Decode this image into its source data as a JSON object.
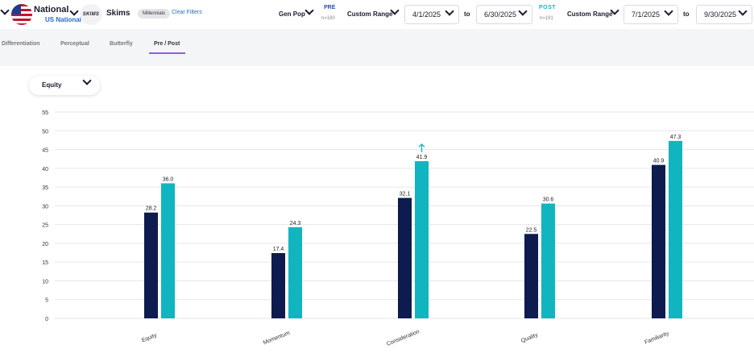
{
  "header": {
    "region_title": "National",
    "region_subtitle": "US National",
    "brand_logo_text": "SKIMS",
    "brand_name": "Skims",
    "filter_pill": "Millennials",
    "clear_filters": "Clear Filters",
    "audience": "Gen Pop",
    "pre": {
      "label": "PRE",
      "n": "n=180",
      "range_type": "Custom Range",
      "start_date": "4/1/2025",
      "end_date": "6/30/2025"
    },
    "post": {
      "label": "POST",
      "n": "n=191",
      "range_type": "Custom Range",
      "start_date": "7/1/2025",
      "end_date": "9/30/2025"
    },
    "to_label": "to"
  },
  "tabs": [
    {
      "label": "Differentiation",
      "active": false
    },
    {
      "label": "Perceptual",
      "active": false
    },
    {
      "label": "Butterfly",
      "active": false
    },
    {
      "label": "Pre / Post",
      "active": true
    }
  ],
  "metric_select": {
    "value": "Equity"
  },
  "chart_data": {
    "type": "bar",
    "categories": [
      "Equity",
      "Momentum",
      "Consideration",
      "Quality",
      "Familiarity"
    ],
    "series": [
      {
        "name": "Pre",
        "color": "#0d1b4f",
        "values": [
          28.2,
          17.4,
          32.1,
          22.5,
          40.9
        ]
      },
      {
        "name": "Post",
        "color": "#10b5bf",
        "values": [
          36.0,
          24.3,
          41.9,
          30.6,
          47.3
        ]
      }
    ],
    "value_labels_pre": [
      "28.2",
      "17.4",
      "32.1",
      "22.5",
      "40.9"
    ],
    "value_labels_post": [
      "36.0",
      "24.3",
      "41.9",
      "30.6",
      "47.3"
    ],
    "significant_increase": [
      "Consideration"
    ],
    "y_ticks": [
      "0",
      "5",
      "10",
      "15",
      "20",
      "25",
      "30",
      "35",
      "40",
      "45",
      "50",
      "55"
    ],
    "ylim": [
      0,
      55
    ],
    "grid": true
  },
  "colors": {
    "pre": "#0d1b4f",
    "post": "#10b5bf",
    "accent": "#8f5fd8",
    "link": "#2a6ac9",
    "significance_arrow": "#10b5bf"
  }
}
